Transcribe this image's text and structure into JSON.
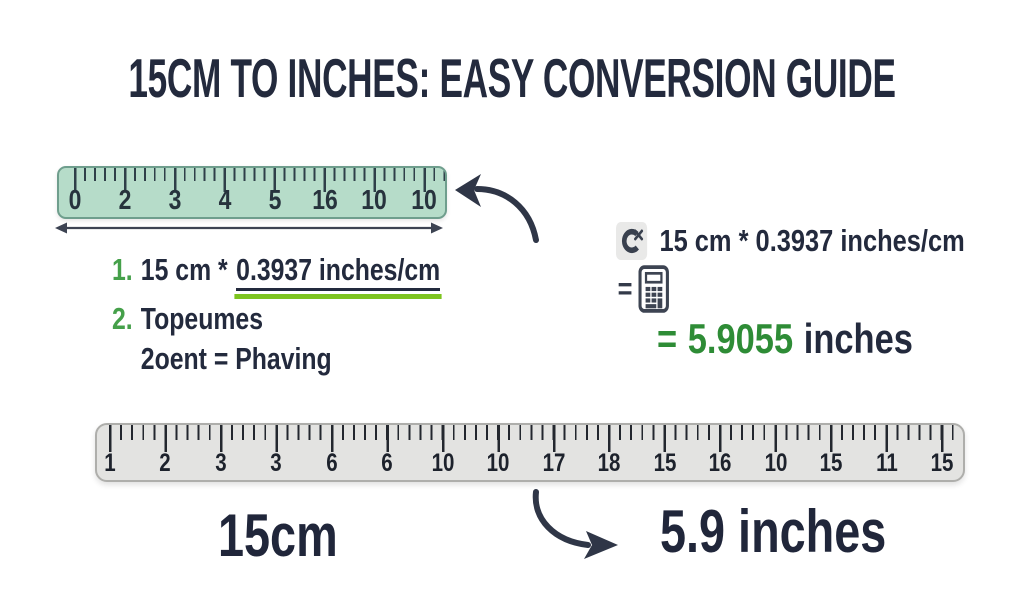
{
  "title": "15CM TO INCHES: EASY CONVERSION GUIDE",
  "top_ruler": {
    "numbers": [
      "0",
      "2",
      "3",
      "4",
      "5",
      "16",
      "10",
      "10"
    ]
  },
  "steps": {
    "items": [
      {
        "marker": "1.",
        "text_prefix": "15 cm * ",
        "text_underlined": "0.3937 inches/cm"
      },
      {
        "marker": "2.",
        "line1": "Topeumes",
        "line2": "2oent = Phaving"
      }
    ]
  },
  "calculation": {
    "expression": "15 cm * 0.3937 inches/cm",
    "equals": "=",
    "result_equals": "=",
    "result_value": "5.9055",
    "result_unit": "inches"
  },
  "bottom_ruler": {
    "numbers": [
      "1",
      "2",
      "3",
      "3",
      "6",
      "6",
      "10",
      "10",
      "17",
      "18",
      "15",
      "16",
      "10",
      "15",
      "11",
      "15"
    ]
  },
  "summary": {
    "from_value": "15cm",
    "to_value": "5.9 inches"
  },
  "icons": {
    "clear_calc": "C-with-x-clear-icon",
    "calculator": "calculator-icon",
    "arrow_top": "curved-arrow-pointing-left",
    "double_arrow": "double-headed-measure-arrow",
    "arrow_bottom": "curved-arrow-pointing-right"
  },
  "colors": {
    "navy_text": "#232a3d",
    "green_marker": "#45a04a",
    "green_result": "#2e8c36",
    "lime_underline": "#7dc41f",
    "mint_ruler": "#b6dcc9",
    "gray_ruler": "#e3e3e1"
  }
}
